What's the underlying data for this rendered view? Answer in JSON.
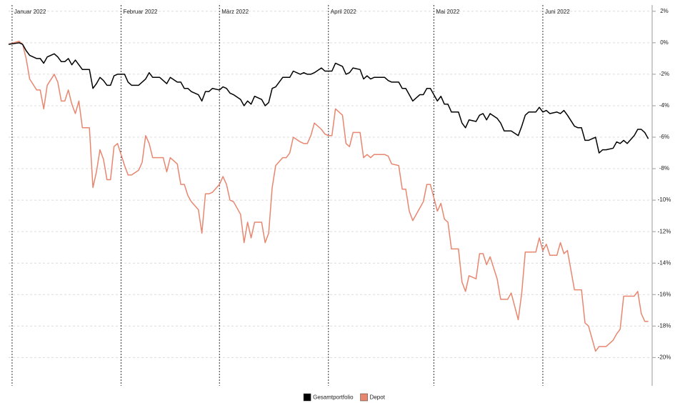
{
  "chart_data": {
    "type": "line",
    "x": [
      -1,
      2,
      3,
      4,
      5,
      7,
      8,
      9,
      10,
      12,
      13,
      14,
      15,
      16,
      17,
      18,
      19,
      20,
      22,
      23,
      24,
      25,
      26,
      27,
      28,
      29,
      30,
      32,
      33,
      34,
      36,
      37,
      38,
      39,
      40,
      42,
      43,
      44,
      45,
      47,
      48,
      49,
      50,
      51,
      53,
      54,
      55,
      56,
      57,
      59,
      60,
      61,
      62,
      63,
      65,
      66,
      67,
      68,
      69,
      71,
      72,
      73,
      74,
      75,
      77,
      78,
      79,
      80,
      82,
      83,
      84,
      85,
      86,
      88,
      89,
      90,
      91,
      92,
      94,
      95,
      96,
      97,
      99,
      100,
      101,
      102,
      103,
      105,
      106,
      107,
      108,
      110,
      111,
      112,
      113,
      114,
      116,
      117,
      118,
      119,
      121,
      122,
      123,
      124,
      125,
      127,
      128,
      129,
      130,
      132,
      133,
      134,
      135,
      136,
      138,
      139,
      140,
      141,
      142,
      144,
      145,
      146,
      147,
      149,
      150,
      151,
      152,
      153,
      155,
      156,
      157,
      158,
      160,
      161,
      162,
      163,
      164,
      166,
      167,
      168,
      169,
      171,
      172,
      173,
      174,
      175,
      177,
      178,
      179,
      180,
      181
    ],
    "series": [
      {
        "name": "Gesamtportfolio",
        "color": "#000000",
        "values": [
          -0.1,
          0,
          -0.1,
          -0.5,
          -0.8,
          -1.0,
          -1.0,
          -1.3,
          -0.9,
          -0.7,
          -0.9,
          -1.2,
          -1.2,
          -1.0,
          -1.4,
          -1.1,
          -1.4,
          -1.7,
          -1.7,
          -2.9,
          -2.6,
          -2.2,
          -2.4,
          -2.7,
          -2.7,
          -2.1,
          -2.0,
          -2.0,
          -2.5,
          -2.7,
          -2.7,
          -2.5,
          -2.3,
          -1.9,
          -2.2,
          -2.2,
          -2.4,
          -2.6,
          -2.2,
          -2.5,
          -2.5,
          -2.9,
          -2.9,
          -3.1,
          -3.3,
          -3.7,
          -3.1,
          -3.1,
          -2.9,
          -3.0,
          -2.8,
          -2.9,
          -3.2,
          -3.3,
          -3.6,
          -4.0,
          -3.7,
          -3.9,
          -3.4,
          -3.6,
          -4.0,
          -3.8,
          -2.9,
          -2.8,
          -2.2,
          -2.2,
          -2.2,
          -1.8,
          -2.0,
          -1.9,
          -2.0,
          -2.0,
          -1.9,
          -1.6,
          -1.8,
          -1.8,
          -1.8,
          -1.3,
          -1.5,
          -2.0,
          -1.9,
          -1.6,
          -1.7,
          -2.3,
          -2.1,
          -2.3,
          -2.2,
          -2.2,
          -2.2,
          -2.4,
          -2.5,
          -2.5,
          -2.9,
          -2.9,
          -3.3,
          -3.7,
          -3.3,
          -3.3,
          -2.9,
          -2.9,
          -3.7,
          -3.4,
          -3.9,
          -3.9,
          -4.4,
          -4.4,
          -5.1,
          -5.4,
          -4.9,
          -5.0,
          -4.6,
          -4.5,
          -4.9,
          -4.5,
          -4.8,
          -5.1,
          -5.6,
          -5.6,
          -5.6,
          -5.9,
          -5.3,
          -4.6,
          -4.4,
          -4.4,
          -4.1,
          -4.4,
          -4.3,
          -4.5,
          -4.4,
          -4.5,
          -4.3,
          -4.6,
          -5.3,
          -5.4,
          -5.4,
          -6.2,
          -6.2,
          -6.0,
          -7.0,
          -6.8,
          -6.8,
          -6.7,
          -6.3,
          -6.4,
          -6.2,
          -6.4,
          -5.9,
          -5.5,
          -5.5,
          -5.7,
          -6.1
        ]
      },
      {
        "name": "Depot",
        "color": "#e8866f",
        "values": [
          -0.1,
          0.1,
          -0.1,
          -1.0,
          -2.3,
          -3.0,
          -3.0,
          -4.2,
          -2.7,
          -2.0,
          -2.5,
          -3.7,
          -3.7,
          -3.0,
          -3.9,
          -4.5,
          -3.7,
          -5.4,
          -5.4,
          -9.2,
          -8.2,
          -6.8,
          -7.4,
          -8.7,
          -8.7,
          -6.6,
          -6.4,
          -7.8,
          -8.4,
          -8.4,
          -8.1,
          -7.6,
          -5.9,
          -6.4,
          -7.3,
          -7.3,
          -7.3,
          -8.2,
          -7.3,
          -7.7,
          -9.0,
          -9.0,
          -9.7,
          -10.1,
          -10.6,
          -12.1,
          -9.6,
          -9.6,
          -9.5,
          -9.0,
          -8.5,
          -9.0,
          -10.0,
          -10.1,
          -10.9,
          -12.7,
          -11.4,
          -12.4,
          -11.4,
          -11.4,
          -12.7,
          -12.1,
          -9.2,
          -7.8,
          -7.3,
          -7.3,
          -7.0,
          -6.0,
          -6.3,
          -6.4,
          -6.4,
          -5.9,
          -5.1,
          -5.5,
          -5.8,
          -5.9,
          -5.9,
          -4.2,
          -4.6,
          -6.4,
          -6.6,
          -5.7,
          -5.7,
          -7.3,
          -7.1,
          -7.3,
          -7.1,
          -7.1,
          -7.1,
          -7.2,
          -7.7,
          -7.8,
          -9.3,
          -9.3,
          -10.7,
          -11.3,
          -10.5,
          -10.1,
          -9.0,
          -9.0,
          -10.7,
          -10.2,
          -11.2,
          -11.4,
          -13.1,
          -13.1,
          -15.2,
          -15.8,
          -14.8,
          -15.0,
          -13.4,
          -13.4,
          -14.1,
          -13.6,
          -15.0,
          -16.3,
          -16.3,
          -16.3,
          -15.9,
          -17.6,
          -15.9,
          -13.3,
          -13.3,
          -13.3,
          -12.4,
          -13.2,
          -12.8,
          -13.5,
          -13.5,
          -12.7,
          -13.4,
          -13.2,
          -15.7,
          -15.7,
          -15.7,
          -17.8,
          -18.0,
          -19.6,
          -19.3,
          -19.3,
          -19.3,
          -18.9,
          -18.5,
          -18.2,
          -16.1,
          -16.1,
          -16.1,
          -15.8,
          -17.2,
          -17.7,
          -17.7
        ]
      }
    ],
    "xlim": [
      -1,
      182.1
    ],
    "xticks": [
      {
        "value": 0,
        "label": "Januar 2022"
      },
      {
        "value": 31,
        "label": "Februar 2022"
      },
      {
        "value": 59,
        "label": "März 2022"
      },
      {
        "value": 90,
        "label": "April 2022"
      },
      {
        "value": 120,
        "label": "Mai 2022"
      },
      {
        "value": 151,
        "label": "Juni 2022"
      }
    ],
    "ylim": [
      -21.8,
      2.4
    ],
    "yticks": [
      {
        "value": 2,
        "label": "2%"
      },
      {
        "value": 0,
        "label": "0%"
      },
      {
        "value": -2,
        "label": "-2%"
      },
      {
        "value": -4,
        "label": "-4%"
      },
      {
        "value": -6,
        "label": "-6%"
      },
      {
        "value": -8,
        "label": "-8%"
      },
      {
        "value": -10,
        "label": "-10%"
      },
      {
        "value": -12,
        "label": "-12%"
      },
      {
        "value": -14,
        "label": "-14%"
      },
      {
        "value": -16,
        "label": "-16%"
      },
      {
        "value": -18,
        "label": "-18%"
      },
      {
        "value": -20,
        "label": "-20%"
      }
    ],
    "y_axis_side": "right",
    "grid": true,
    "legend": "bottom"
  }
}
